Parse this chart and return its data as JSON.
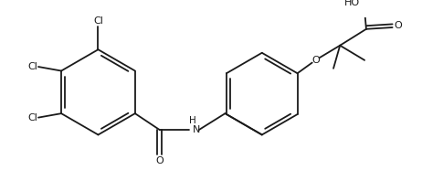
{
  "bg_color": "#ffffff",
  "line_color": "#1a1a1a",
  "lw": 1.3,
  "figsize": [
    4.62,
    1.86
  ],
  "dpi": 100,
  "xlim": [
    0,
    462
  ],
  "ylim": [
    0,
    186
  ]
}
